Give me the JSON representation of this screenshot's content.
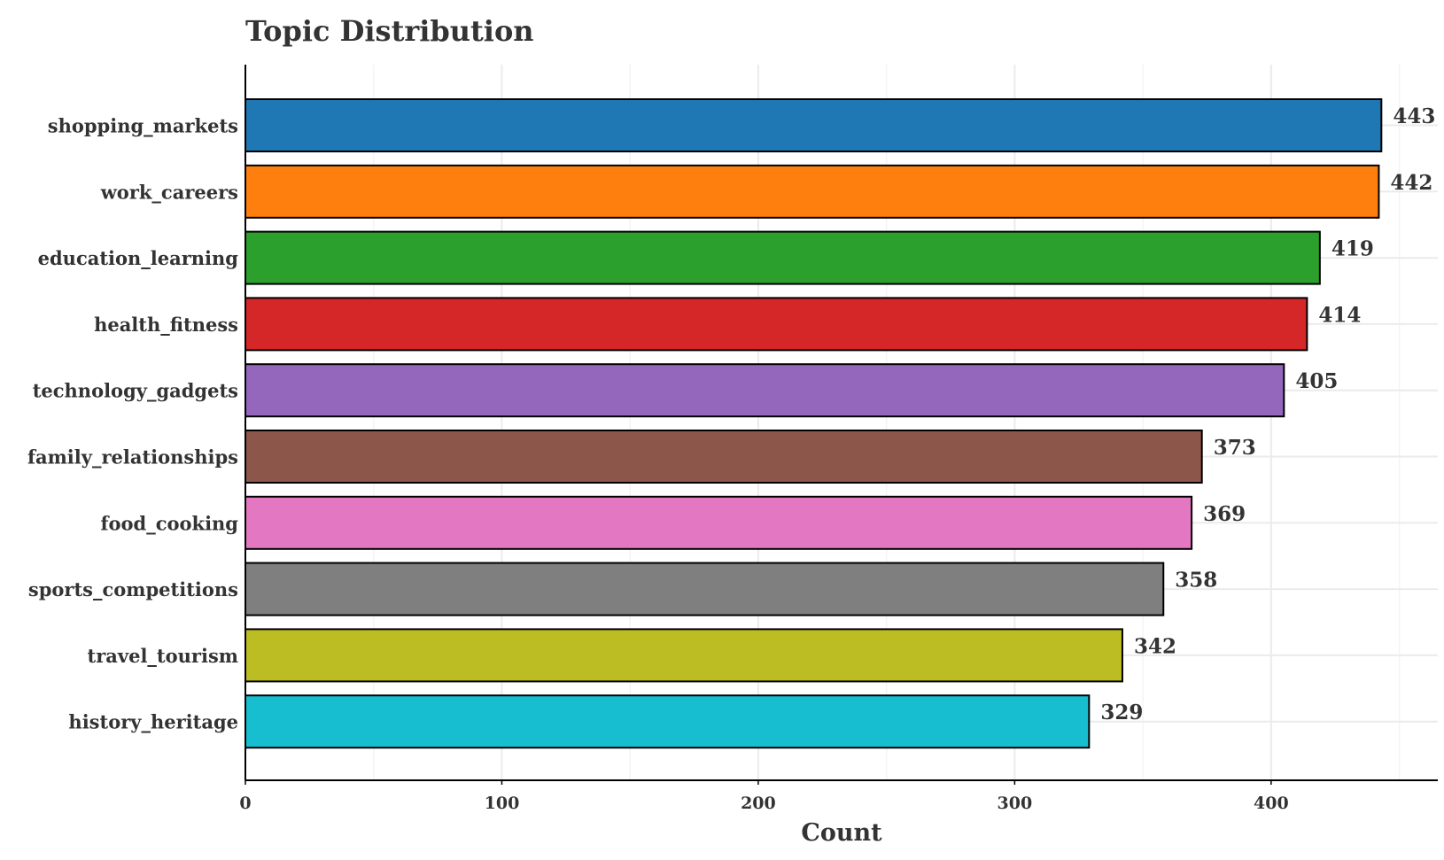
{
  "chart_data": {
    "type": "bar",
    "orientation": "horizontal",
    "title": "Topic Distribution",
    "xlabel": "Count",
    "ylabel": "",
    "xlim": [
      0,
      465
    ],
    "xticks": [
      0,
      100,
      200,
      300,
      400
    ],
    "grid": true,
    "categories": [
      "shopping_markets",
      "work_careers",
      "education_learning",
      "health_fitness",
      "technology_gadgets",
      "family_relationships",
      "food_cooking",
      "sports_competitions",
      "travel_tourism",
      "history_heritage"
    ],
    "values": [
      443,
      442,
      419,
      414,
      405,
      373,
      369,
      358,
      342,
      329
    ],
    "colors": [
      "#1f77b4",
      "#ff7f0e",
      "#2ca02c",
      "#d62728",
      "#9467bd",
      "#8c564b",
      "#e377c2",
      "#7f7f7f",
      "#bcbd22",
      "#17becf"
    ]
  }
}
